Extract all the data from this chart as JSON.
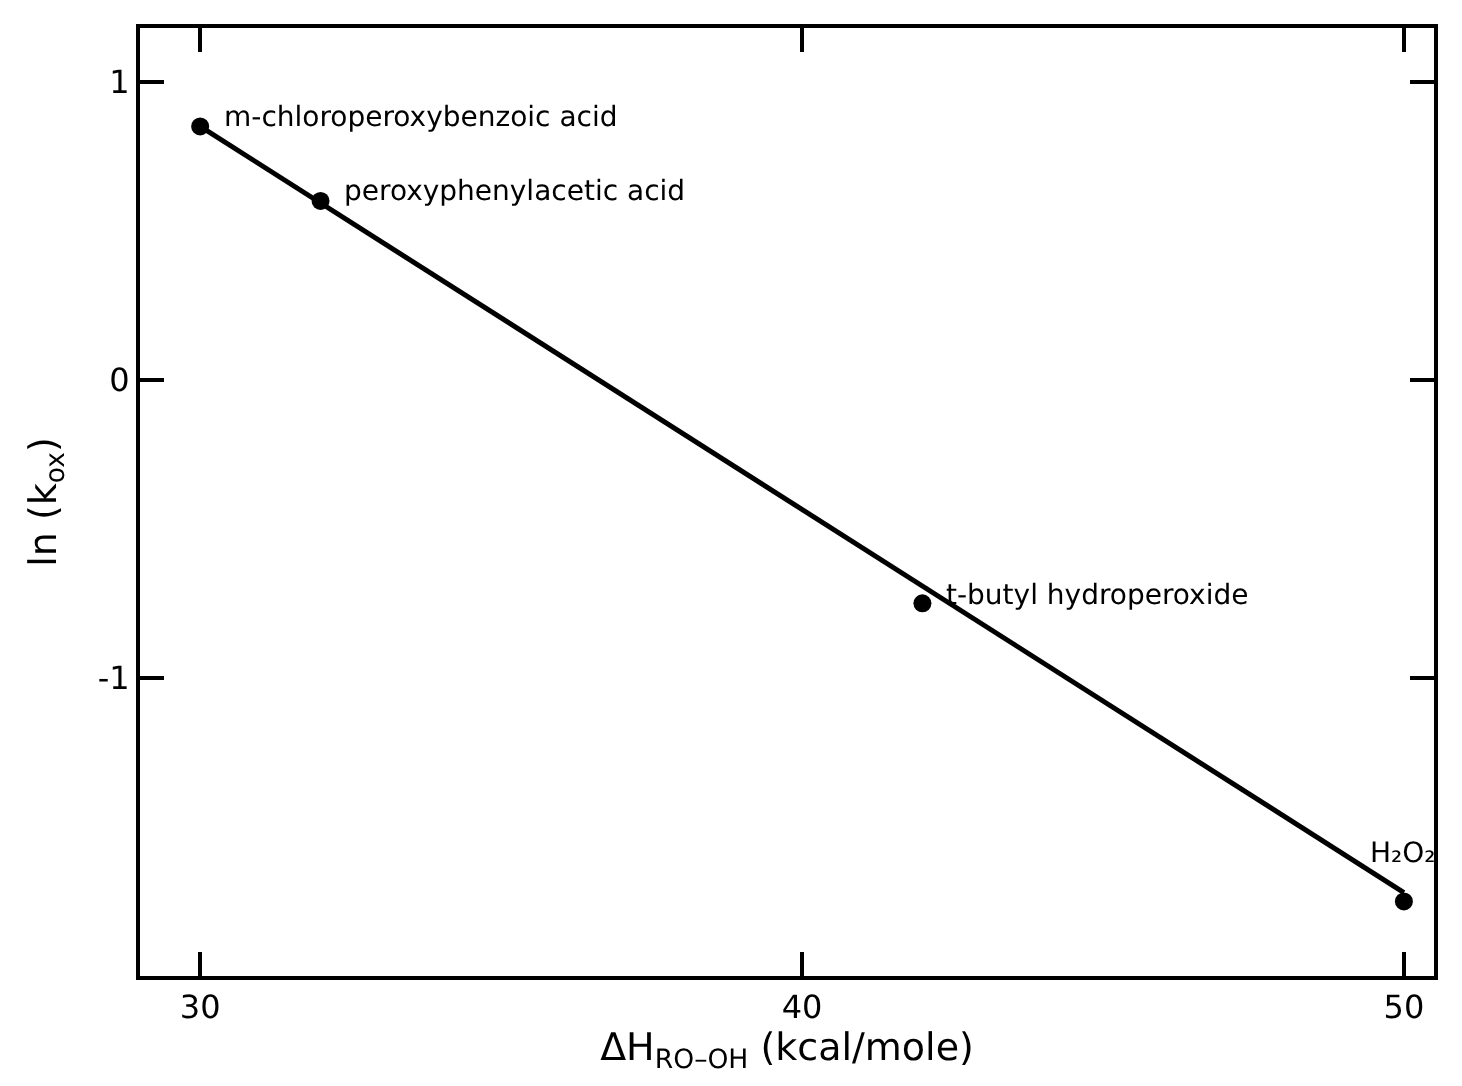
{
  "chart_data": {
    "type": "scatter",
    "xlabel": "ΔH$_{RO–OH}$ (kcal/mole)",
    "ylabel": "ln (k$_{ox}$)",
    "series": [
      {
        "color": "#000000",
        "marker": "circle",
        "x": [
          30,
          32,
          42,
          50
        ],
        "values": [
          0.85,
          0.6,
          -0.75,
          -1.75
        ]
      },
      {
        "type": "line",
        "marker": "none",
        "color": "#000000",
        "x": [
          30,
          50
        ],
        "values": [
          0.85,
          -1.72
        ]
      }
    ],
    "annotations": [
      {
        "text": "m-chloroperoxybenzoic acid",
        "x": 30,
        "y": 0.85
      },
      {
        "text": "peroxyphenylacetic acid",
        "x": 32,
        "y": 0.6
      },
      {
        "text": "t-butyl hydroperoxide",
        "x": 42,
        "y": -0.75
      },
      {
        "text": "H₂O₂",
        "x": 50,
        "y": -1.75
      }
    ],
    "xlim": [
      29,
      50.5
    ],
    "ylim": [
      -2,
      1.18
    ],
    "xticks": [
      30,
      40,
      50
    ],
    "yticks": [
      -1,
      0,
      1
    ]
  }
}
